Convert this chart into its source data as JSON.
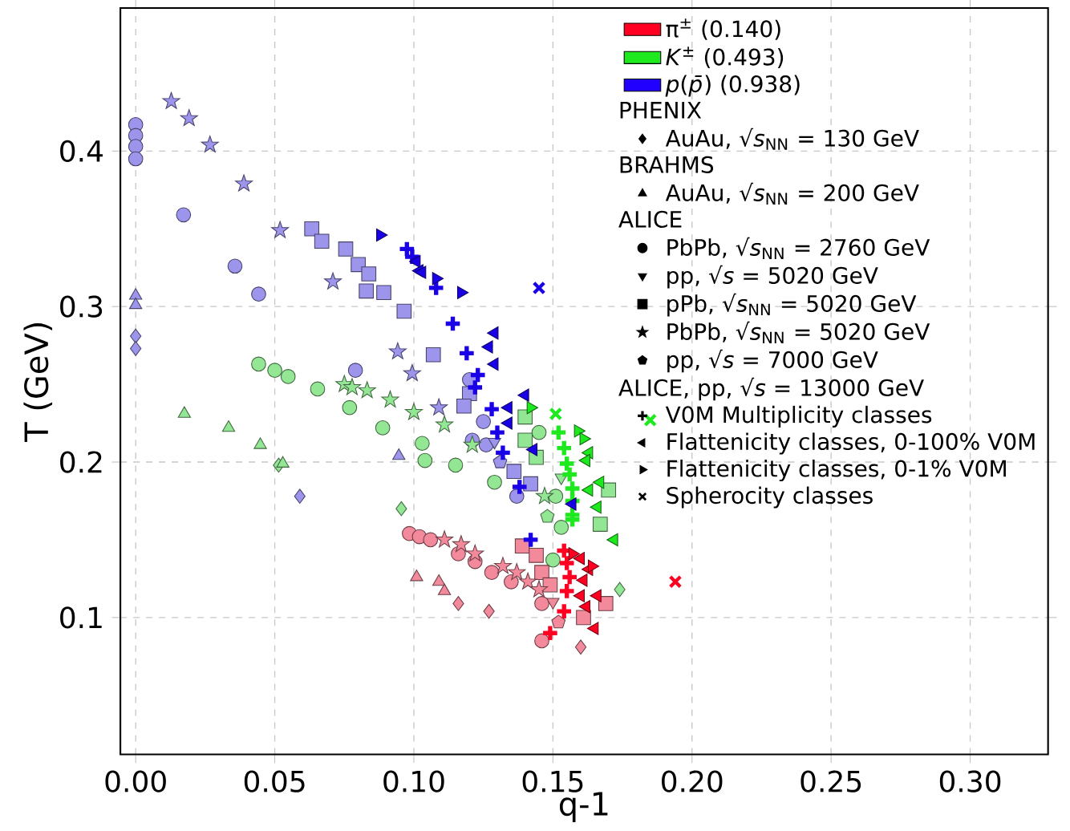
{
  "chart_data": {
    "type": "scatter",
    "xlabel": "q-1",
    "ylabel": "T (GeV)",
    "xlim": [
      -0.0055,
      0.328
    ],
    "ylim": [
      0.012,
      0.492
    ],
    "xticks": [
      {
        "value": 0,
        "label": "0.00"
      },
      {
        "value": 0.05,
        "label": "0.05"
      },
      {
        "value": 0.1,
        "label": "0.10"
      },
      {
        "value": 0.15,
        "label": "0.15"
      },
      {
        "value": 0.2,
        "label": "0.20"
      },
      {
        "value": 0.25,
        "label": "0.25"
      },
      {
        "value": 0.3,
        "label": "0.30"
      }
    ],
    "yticks": [
      0.1,
      0.2,
      0.3,
      0.4
    ],
    "grid": true,
    "legend": "top right",
    "series": [
      {
        "type": "bar",
        "name": "π$^{±}$ (0.140)",
        "color": "#ff0022"
      },
      {
        "type": "bar",
        "name": "*K*$^{±}$ (0.493)",
        "color": "#1ee81e"
      },
      {
        "type": "bar",
        "name": "*p*(*p̄*) (0.938)",
        "color": "#2200ff"
      },
      {
        "name": "PHENIX",
        "marker": "none"
      },
      {
        "name": "AuAu, √*s*$_{NN}$ = 130 GeV",
        "marker": "diamond",
        "color": "#000000"
      },
      {
        "name": "BRAHMS",
        "marker": "none"
      },
      {
        "name": "AuAu, √*s*$_{NN}$ = 200 GeV",
        "marker": "triangle",
        "color": "#000000"
      },
      {
        "name": "ALICE",
        "marker": "none"
      },
      {
        "name": "PbPb, √*s*$_{NN}$ = 2760 GeV",
        "marker": "circle",
        "color": "#000000"
      },
      {
        "name": "pp, √*s* = 5020 GeV",
        "marker": "triangle-down",
        "color": "#000000"
      },
      {
        "name": "pPb, √*s*$_{NN}$ = 5020 GeV",
        "marker": "square",
        "color": "#000000"
      },
      {
        "name": "PbPb, √*s*$_{NN}$ = 5020 GeV",
        "marker": "star",
        "color": "#000000"
      },
      {
        "name": "pp, √*s* = 7000 GeV",
        "color": "#000000"
      },
      {
        "name": "ALICE, pp, √*s* = 13000 GeV",
        "marker": "none"
      },
      {
        "name": "V0M Multiplicity classes",
        "marker": "plus",
        "color": "#000000"
      },
      {
        "name": "Flattenicity classes, 0-100% V0M",
        "marker": "triangle-left",
        "color": "#000000"
      },
      {
        "name": "Flattenicity classes, 0-1% V0M",
        "marker": "triangle-right",
        "color": "#000000"
      },
      {
        "name": "Spherocity classes",
        "marker": "cross",
        "color": "#000000"
      },
      {
        "marker": "diamond",
        "color": "#9d95ec",
        "x": [
          0,
          0,
          0.059
        ],
        "values": [
          0.281,
          0.273,
          0.178
        ]
      },
      {
        "marker": "diamond",
        "color": "#93e693",
        "x": [
          0.0514,
          0.0955,
          0.174
        ],
        "values": [
          0.198,
          0.17,
          0.118
        ]
      },
      {
        "marker": "diamond",
        "color": "#f28a9c",
        "x": [
          0.116,
          0.127,
          0.16
        ],
        "values": [
          0.109,
          0.104,
          0.081
        ]
      },
      {
        "marker": "triangle",
        "color": "#9d95ec",
        "x": [
          0,
          0,
          0.0946
        ],
        "values": [
          0.307,
          0.301,
          0.204
        ]
      },
      {
        "marker": "triangle",
        "color": "#93e693",
        "x": [
          0.0175,
          0.0334,
          0.0448,
          0.0529
        ],
        "values": [
          0.231,
          0.222,
          0.211,
          0.199
        ]
      },
      {
        "marker": "triangle",
        "color": "#f28a9c",
        "x": [
          0.101,
          0.109,
          0.111
        ],
        "values": [
          0.126,
          0.123,
          0.117
        ]
      },
      {
        "marker": "circle",
        "color": "#9d95ec",
        "x": [
          0,
          0,
          0,
          0,
          0.0172,
          0.0357,
          0.0442,
          0.079,
          0.12,
          0.125,
          0.121,
          0.126,
          0.137
        ],
        "values": [
          0.417,
          0.41,
          0.403,
          0.395,
          0.359,
          0.326,
          0.308,
          0.259,
          0.253,
          0.226,
          0.214,
          0.211,
          0.178
        ]
      },
      {
        "marker": "circle",
        "color": "#93e693",
        "x": [
          0.0442,
          0.05,
          0.0548,
          0.0654,
          0.0769,
          0.0888,
          0.103,
          0.104,
          0.115,
          0.129,
          0.145,
          0.151,
          0.153,
          0.15
        ],
        "values": [
          0.263,
          0.259,
          0.255,
          0.247,
          0.235,
          0.222,
          0.212,
          0.201,
          0.198,
          0.187,
          0.219,
          0.178,
          0.158,
          0.137
        ]
      },
      {
        "marker": "circle",
        "color": "#f28a9c",
        "x": [
          0.0984,
          0.102,
          0.106,
          0.116,
          0.122,
          0.128,
          0.135,
          0.146,
          0.146
        ],
        "values": [
          0.154,
          0.152,
          0.15,
          0.141,
          0.136,
          0.129,
          0.123,
          0.109,
          0.085
        ]
      },
      {
        "marker": "triangle-down",
        "color": "#9d95ec",
        "x": [
          0.129
        ],
        "values": [
          0.213
        ]
      },
      {
        "marker": "triangle-down",
        "color": "#93e693",
        "x": [
          0.153
        ],
        "values": [
          0.19
        ]
      },
      {
        "marker": "triangle-down",
        "color": "#f28a9c",
        "x": [
          0.15
        ],
        "values": [
          0.11
        ]
      },
      {
        "marker": "square",
        "color": "#9d95ec",
        "x": [
          0.0633,
          0.0669,
          0.0755,
          0.08,
          0.0838,
          0.0829,
          0.0892,
          0.0965,
          0.107,
          0.12,
          0.118,
          0.136,
          0.142
        ],
        "values": [
          0.35,
          0.342,
          0.337,
          0.327,
          0.321,
          0.31,
          0.309,
          0.297,
          0.269,
          0.244,
          0.236,
          0.194,
          0.186
        ]
      },
      {
        "marker": "square",
        "color": "#93e693",
        "x": [
          0.14,
          0.14,
          0.144,
          0.17,
          0.167
        ],
        "values": [
          0.229,
          0.214,
          0.203,
          0.182,
          0.16
        ]
      },
      {
        "marker": "square",
        "color": "#f28a9c",
        "x": [
          0.139,
          0.144,
          0.146,
          0.149,
          0.169,
          0.161
        ],
        "values": [
          0.146,
          0.14,
          0.129,
          0.121,
          0.109,
          0.1
        ]
      },
      {
        "marker": "star",
        "color": "#9d95ec",
        "x": [
          0.0128,
          0.0192,
          0.0267,
          0.0389,
          0.0519,
          0.0709,
          0.0942,
          0.0994,
          0.109
        ],
        "values": [
          0.432,
          0.421,
          0.404,
          0.379,
          0.349,
          0.316,
          0.271,
          0.257,
          0.235
        ]
      },
      {
        "marker": "star",
        "color": "#93e693",
        "x": [
          0.075,
          0.0778,
          0.0832,
          0.0915,
          0.1,
          0.111,
          0.121,
          0.147
        ],
        "values": [
          0.25,
          0.248,
          0.246,
          0.24,
          0.232,
          0.224,
          0.211,
          0.178
        ]
      },
      {
        "marker": "star",
        "color": "#f28a9c",
        "x": [
          0.111,
          0.117,
          0.122,
          0.132,
          0.137,
          0.141,
          0.145
        ],
        "values": [
          0.15,
          0.147,
          0.141,
          0.133,
          0.129,
          0.123,
          0.118
        ]
      },
      {
        "color": "#9d95ec",
        "x": [
          0.131
        ],
        "values": [
          0.2
        ]
      },
      {
        "color": "#93e693",
        "x": [
          0.148
        ],
        "values": [
          0.165
        ]
      },
      {
        "color": "#f28a9c",
        "x": [
          0.152
        ],
        "values": [
          0.097
        ]
      },
      {
        "marker": "plus",
        "color": "#1a00e6",
        "x": [
          0.0975,
          0.0994,
          0.108,
          0.114,
          0.119,
          0.123,
          0.122,
          0.128,
          0.13,
          0.132,
          0.138,
          0.142
        ],
        "values": [
          0.337,
          0.332,
          0.312,
          0.289,
          0.27,
          0.256,
          0.248,
          0.234,
          0.219,
          0.206,
          0.184,
          0.15
        ]
      },
      {
        "marker": "plus",
        "color": "#1ee81e",
        "x": [
          0.152,
          0.154,
          0.155,
          0.156,
          0.157,
          0.157,
          0.157,
          0.157
        ],
        "values": [
          0.219,
          0.209,
          0.199,
          0.192,
          0.183,
          0.175,
          0.166,
          0.163
        ]
      },
      {
        "marker": "plus",
        "color": "#ff0022",
        "x": [
          0.154,
          0.155,
          0.156,
          0.155,
          0.154,
          0.149
        ],
        "values": [
          0.143,
          0.135,
          0.126,
          0.117,
          0.104,
          0.09
        ]
      },
      {
        "marker": "triangle-left",
        "color": "#1a00e6",
        "x": [
          0.101,
          0.102,
          0.103,
          0.129,
          0.127,
          0.129,
          0.14,
          0.134,
          0.134,
          0.143,
          0.157
        ],
        "values": [
          0.329,
          0.323,
          0.322,
          0.283,
          0.274,
          0.263,
          0.243,
          0.235,
          0.225,
          0.208,
          0.173
        ]
      },
      {
        "marker": "triangle-left",
        "color": "#1ee81e",
        "x": [
          0.163,
          0.162,
          0.167,
          0.163,
          0.166,
          0.172
        ],
        "values": [
          0.206,
          0.201,
          0.187,
          0.182,
          0.171,
          0.15
        ]
      },
      {
        "marker": "triangle-left",
        "color": "#ff0022",
        "x": [
          0.16,
          0.163,
          0.161,
          0.16,
          0.166,
          0.162,
          0.165
        ],
        "values": [
          0.138,
          0.131,
          0.124,
          0.114,
          0.114,
          0.107,
          0.093
        ]
      },
      {
        "marker": "triangle-right",
        "color": "#1a00e6",
        "x": [
          0.0879,
          0.108,
          0.117
        ],
        "values": [
          0.346,
          0.318,
          0.309
        ]
      },
      {
        "marker": "triangle-right",
        "color": "#1ee81e",
        "x": [
          0.142,
          0.159,
          0.161
        ],
        "values": [
          0.235,
          0.22,
          0.215
        ]
      },
      {
        "marker": "triangle-right",
        "color": "#ff0022",
        "x": [
          0.157,
          0.164
        ],
        "values": [
          0.141,
          0.133
        ]
      },
      {
        "marker": "cross",
        "color": "#1a00e6",
        "x": [
          0.145
        ],
        "values": [
          0.312
        ]
      },
      {
        "marker": "cross",
        "color": "#1ee81e",
        "x": [
          0.185,
          0.151
        ],
        "values": [
          0.227,
          0.231
        ]
      },
      {
        "marker": "cross",
        "color": "#ff0022",
        "x": [
          0.194
        ],
        "values": [
          0.123
        ]
      }
    ]
  }
}
